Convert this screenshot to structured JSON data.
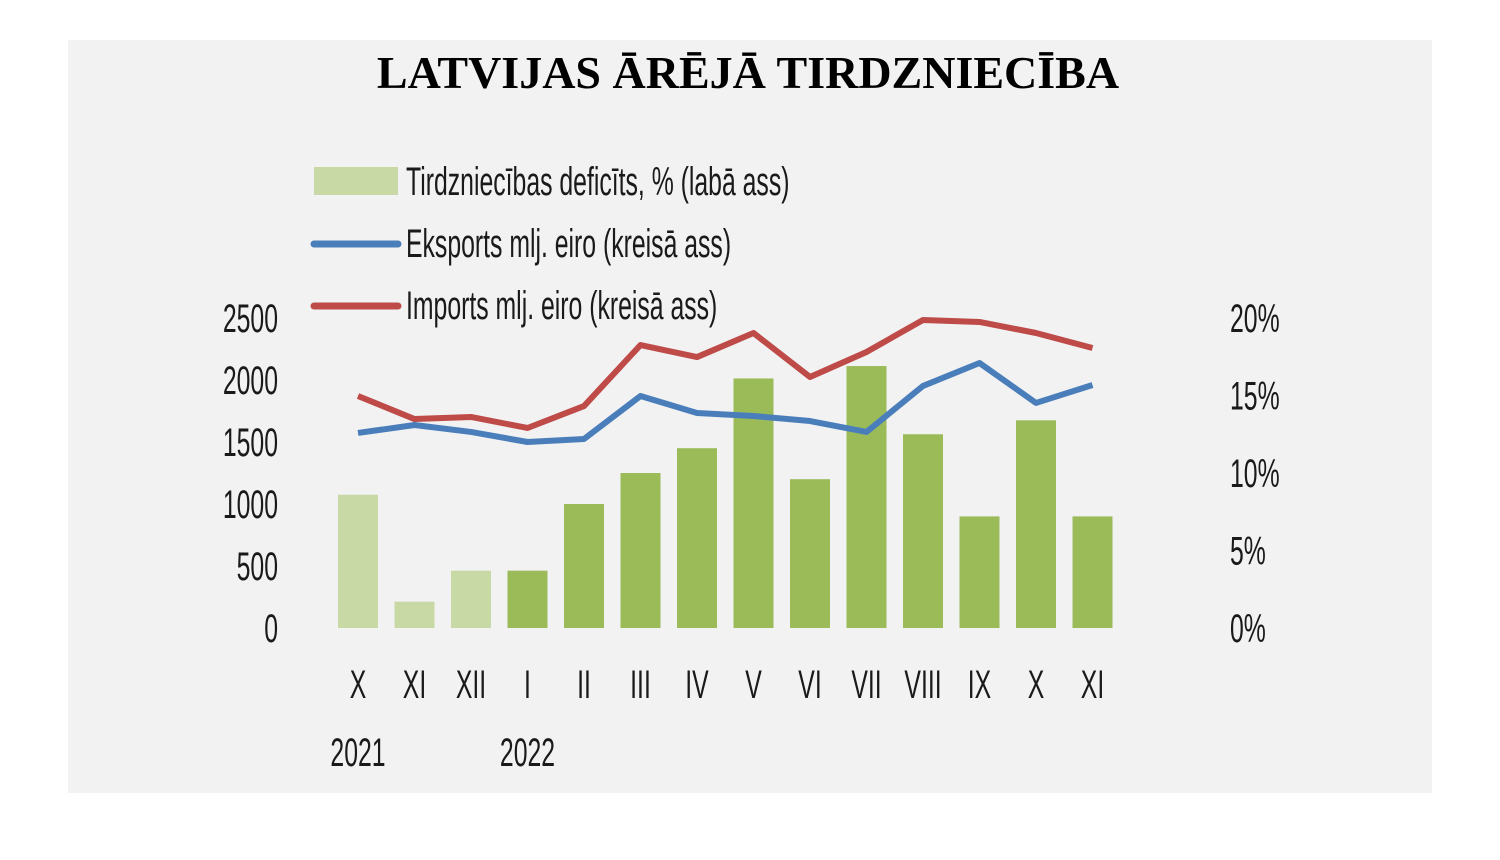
{
  "chart_data": {
    "type": "bar+line",
    "title": "LATVIJAS ĀRĒJĀ TIRDZNIECĪBA",
    "categories": [
      "X",
      "XI",
      "XII",
      "I",
      "II",
      "III",
      "IV",
      "V",
      "VI",
      "VII",
      "VIII",
      "IX",
      "X",
      "XI"
    ],
    "year_labels": [
      {
        "label": "2021",
        "index": 0
      },
      {
        "label": "2022",
        "index": 3
      }
    ],
    "left_axis": {
      "ylim": [
        0,
        2500
      ],
      "ticks": [
        "0",
        "500",
        "1000",
        "1500",
        "2000",
        "2500"
      ],
      "tick_values": [
        0,
        500,
        1000,
        1500,
        2000,
        2500
      ]
    },
    "right_axis": {
      "ylim": [
        0,
        20
      ],
      "ticks": [
        "0%",
        "5%",
        "10%",
        "15%",
        "20%"
      ],
      "tick_values": [
        0,
        5,
        10,
        15,
        20
      ]
    },
    "grid": false,
    "legend_placement": "top-left",
    "series": [
      {
        "name": "Tirdzniecības deficīts, % (labā ass)",
        "type": "bar",
        "axis": "right",
        "color": "#9bbb59",
        "color_2021": "#c9d9a6",
        "legend_color": "#c9d9a6",
        "values": [
          8.6,
          1.7,
          3.7,
          3.7,
          8.0,
          10.0,
          11.6,
          16.1,
          9.6,
          16.9,
          12.5,
          7.2,
          13.4,
          7.2
        ]
      },
      {
        "name": "Eksports mlj. eiro (kreisā ass)",
        "type": "line",
        "axis": "left",
        "color": "#4a7ebb",
        "values": [
          1573,
          1637,
          1581,
          1500,
          1524,
          1871,
          1734,
          1710,
          1669,
          1581,
          1952,
          2137,
          1815,
          1960
        ]
      },
      {
        "name": "Imports mlj. eiro (kreisā ass)",
        "type": "line",
        "axis": "left",
        "color": "#be4b48",
        "values": [
          1871,
          1685,
          1702,
          1613,
          1790,
          2282,
          2185,
          2379,
          2024,
          2226,
          2484,
          2468,
          2379,
          2258
        ]
      }
    ]
  }
}
